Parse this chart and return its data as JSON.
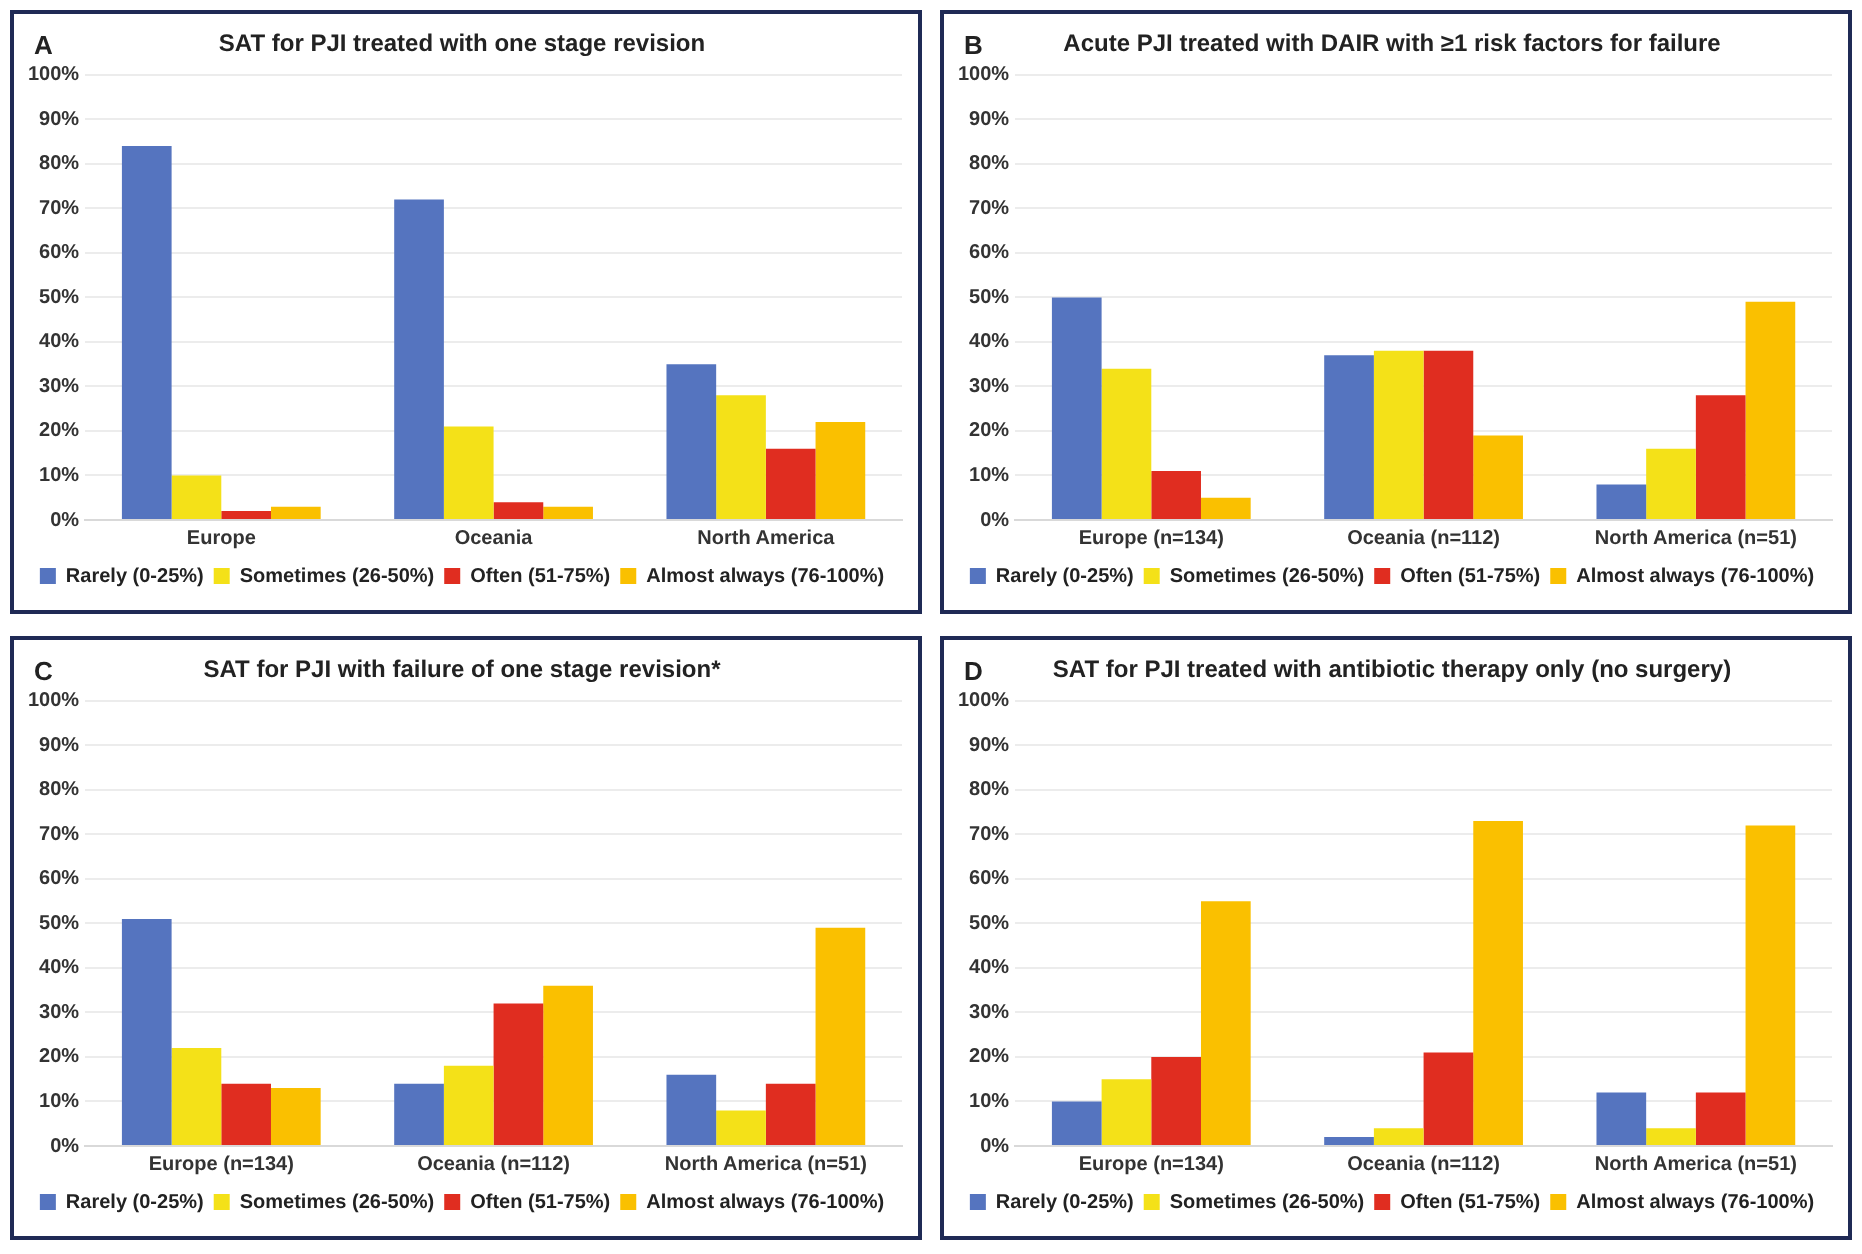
{
  "chart_data": [
    {
      "type": "bar",
      "title": "SAT for PJI treated with one stage revision",
      "annotations": [
        "A"
      ],
      "categories": [
        "Europe",
        "Oceania",
        "North America"
      ],
      "series": [
        {
          "name": "Rarely (0-25%)",
          "color": "#5574bf",
          "values": [
            84,
            72,
            35
          ]
        },
        {
          "name": "Sometimes (26-50%)",
          "color": "#f4e118",
          "values": [
            10,
            21,
            28
          ]
        },
        {
          "name": "Often (51-75%)",
          "color": "#e02d20",
          "values": [
            2,
            4,
            16
          ]
        },
        {
          "name": "Almost always (76-100%)",
          "color": "#fac000",
          "values": [
            3,
            3,
            22
          ]
        }
      ],
      "ylim": [
        0,
        100
      ],
      "yticks": [
        {
          "value": 0,
          "label": "0%"
        },
        {
          "value": 10,
          "label": "10%"
        },
        {
          "value": 20,
          "label": "20%"
        },
        {
          "value": 30,
          "label": "30%"
        },
        {
          "value": 40,
          "label": "40%"
        },
        {
          "value": 50,
          "label": "50%"
        },
        {
          "value": 60,
          "label": "60%"
        },
        {
          "value": 70,
          "label": "70%"
        },
        {
          "value": 80,
          "label": "80%"
        },
        {
          "value": 90,
          "label": "90%"
        },
        {
          "value": 100,
          "label": "100%"
        }
      ],
      "grid": "y",
      "legend": "bottom"
    },
    {
      "type": "bar",
      "title": "Acute PJI treated with DAIR with ≥1 risk factors for failure",
      "annotations": [
        "B"
      ],
      "categories": [
        "Europe (n=134)",
        "Oceania (n=112)",
        "North America (n=51)"
      ],
      "series": [
        {
          "name": "Rarely (0-25%)",
          "color": "#5574bf",
          "values": [
            50,
            37,
            8
          ]
        },
        {
          "name": "Sometimes (26-50%)",
          "color": "#f4e118",
          "values": [
            34,
            38,
            16
          ]
        },
        {
          "name": "Often (51-75%)",
          "color": "#e02d20",
          "values": [
            11,
            38,
            28
          ]
        },
        {
          "name": "Almost always (76-100%)",
          "color": "#fac000",
          "values": [
            5,
            19,
            49
          ]
        }
      ],
      "ylim": [
        0,
        100
      ],
      "yticks": [
        {
          "value": 0,
          "label": "0%"
        },
        {
          "value": 10,
          "label": "10%"
        },
        {
          "value": 20,
          "label": "20%"
        },
        {
          "value": 30,
          "label": "30%"
        },
        {
          "value": 40,
          "label": "40%"
        },
        {
          "value": 50,
          "label": "50%"
        },
        {
          "value": 60,
          "label": "60%"
        },
        {
          "value": 70,
          "label": "70%"
        },
        {
          "value": 80,
          "label": "80%"
        },
        {
          "value": 90,
          "label": "90%"
        },
        {
          "value": 100,
          "label": "100%"
        }
      ],
      "grid": "y",
      "legend": "bottom"
    },
    {
      "type": "bar",
      "title": "SAT for PJI with failure of one stage revision*",
      "annotations": [
        "C"
      ],
      "categories": [
        "Europe (n=134)",
        "Oceania (n=112)",
        "North America (n=51)"
      ],
      "series": [
        {
          "name": "Rarely (0-25%)",
          "color": "#5574bf",
          "values": [
            51,
            14,
            16
          ]
        },
        {
          "name": "Sometimes (26-50%)",
          "color": "#f4e118",
          "values": [
            22,
            18,
            8
          ]
        },
        {
          "name": "Often (51-75%)",
          "color": "#e02d20",
          "values": [
            14,
            32,
            14
          ]
        },
        {
          "name": "Almost always (76-100%)",
          "color": "#fac000",
          "values": [
            13,
            36,
            49
          ]
        }
      ],
      "ylim": [
        0,
        100
      ],
      "yticks": [
        {
          "value": 0,
          "label": "0%"
        },
        {
          "value": 10,
          "label": "10%"
        },
        {
          "value": 20,
          "label": "20%"
        },
        {
          "value": 30,
          "label": "30%"
        },
        {
          "value": 40,
          "label": "40%"
        },
        {
          "value": 50,
          "label": "50%"
        },
        {
          "value": 60,
          "label": "60%"
        },
        {
          "value": 70,
          "label": "70%"
        },
        {
          "value": 80,
          "label": "80%"
        },
        {
          "value": 90,
          "label": "90%"
        },
        {
          "value": 100,
          "label": "100%"
        }
      ],
      "grid": "y",
      "legend": "bottom"
    },
    {
      "type": "bar",
      "title": "SAT for PJI treated with antibiotic therapy only (no surgery)",
      "annotations": [
        "D"
      ],
      "categories": [
        "Europe (n=134)",
        "Oceania (n=112)",
        "North America (n=51)"
      ],
      "series": [
        {
          "name": "Rarely (0-25%)",
          "color": "#5574bf",
          "values": [
            10,
            2,
            12
          ]
        },
        {
          "name": "Sometimes (26-50%)",
          "color": "#f4e118",
          "values": [
            15,
            4,
            4
          ]
        },
        {
          "name": "Often (51-75%)",
          "color": "#e02d20",
          "values": [
            20,
            21,
            12
          ]
        },
        {
          "name": "Almost always (76-100%)",
          "color": "#fac000",
          "values": [
            55,
            73,
            72
          ]
        }
      ],
      "ylim": [
        0,
        100
      ],
      "yticks": [
        {
          "value": 0,
          "label": "0%"
        },
        {
          "value": 10,
          "label": "10%"
        },
        {
          "value": 20,
          "label": "20%"
        },
        {
          "value": 30,
          "label": "30%"
        },
        {
          "value": 40,
          "label": "40%"
        },
        {
          "value": 50,
          "label": "50%"
        },
        {
          "value": 60,
          "label": "60%"
        },
        {
          "value": 70,
          "label": "70%"
        },
        {
          "value": 80,
          "label": "80%"
        },
        {
          "value": 90,
          "label": "90%"
        },
        {
          "value": 100,
          "label": "100%"
        }
      ],
      "grid": "y",
      "legend": "bottom"
    }
  ]
}
